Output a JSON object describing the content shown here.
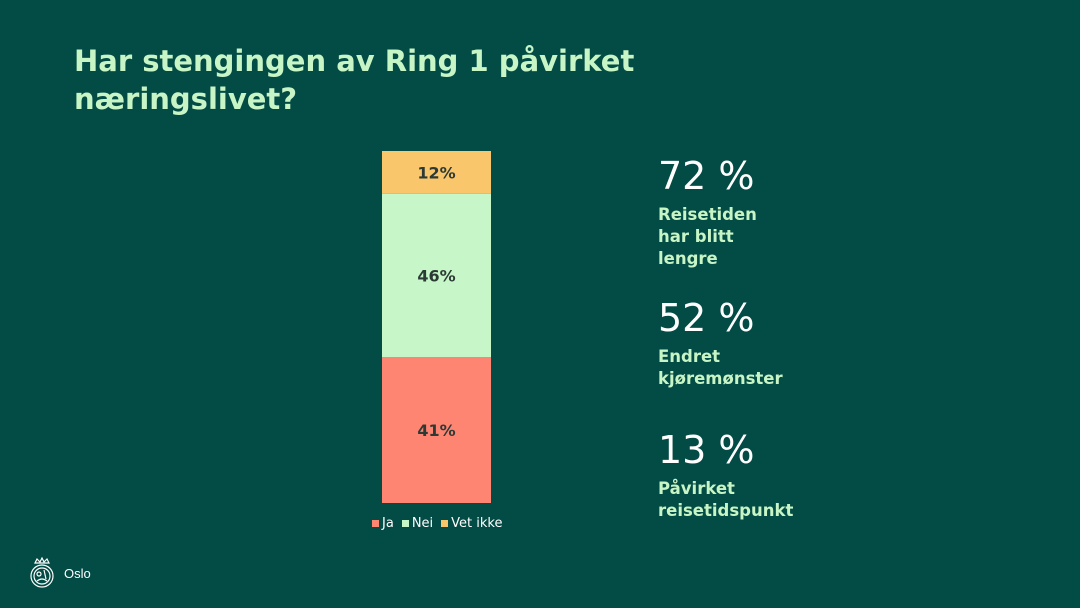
{
  "title": "Har stengingen av Ring 1 påvirket næringslivet?",
  "chart_data": {
    "type": "bar",
    "stacked": true,
    "categories": [
      ""
    ],
    "series": [
      {
        "name": "Ja",
        "values": [
          41
        ],
        "label": "41%",
        "color": "#ff8573"
      },
      {
        "name": "Nei",
        "values": [
          46
        ],
        "label": "46%",
        "color": "#c7f7c9"
      },
      {
        "name": "Vet ikke",
        "values": [
          12
        ],
        "label": "12%",
        "color": "#f9c66b"
      }
    ],
    "legend_position": "bottom"
  },
  "stats": [
    {
      "value": "72 %",
      "label_lines": [
        "Reisetiden",
        "har blitt",
        "lengre"
      ]
    },
    {
      "value": "52 %",
      "label_lines": [
        "Endret",
        "kjøremønster"
      ]
    },
    {
      "value": "13 %",
      "label_lines": [
        "Påvirket",
        "reisetidspunkt"
      ]
    }
  ],
  "logo": {
    "text": "Oslo",
    "icon": "oslo-seal-icon"
  }
}
